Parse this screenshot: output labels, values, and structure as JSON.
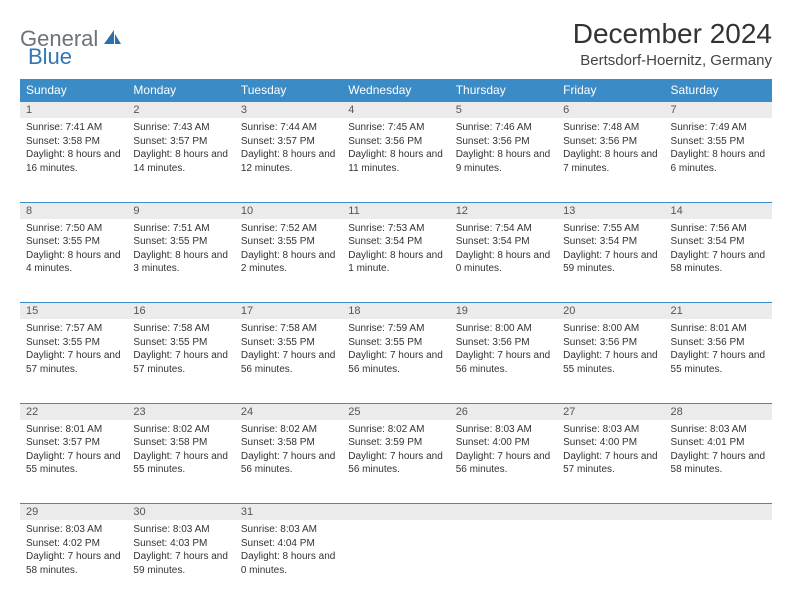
{
  "brand": {
    "part1": "General",
    "part2": "Blue",
    "color1": "#6b7278",
    "color2": "#3277b3"
  },
  "title": "December 2024",
  "location": "Bertsdorf-Hoernitz, Germany",
  "header_bg": "#3b8bc7",
  "daynum_bg": "#ebebeb",
  "border_color": "#3b8bc7",
  "weekdays": [
    "Sunday",
    "Monday",
    "Tuesday",
    "Wednesday",
    "Thursday",
    "Friday",
    "Saturday"
  ],
  "weeks": [
    [
      {
        "day": "1",
        "sunrise": "Sunrise: 7:41 AM",
        "sunset": "Sunset: 3:58 PM",
        "daylight": "Daylight: 8 hours and 16 minutes."
      },
      {
        "day": "2",
        "sunrise": "Sunrise: 7:43 AM",
        "sunset": "Sunset: 3:57 PM",
        "daylight": "Daylight: 8 hours and 14 minutes."
      },
      {
        "day": "3",
        "sunrise": "Sunrise: 7:44 AM",
        "sunset": "Sunset: 3:57 PM",
        "daylight": "Daylight: 8 hours and 12 minutes."
      },
      {
        "day": "4",
        "sunrise": "Sunrise: 7:45 AM",
        "sunset": "Sunset: 3:56 PM",
        "daylight": "Daylight: 8 hours and 11 minutes."
      },
      {
        "day": "5",
        "sunrise": "Sunrise: 7:46 AM",
        "sunset": "Sunset: 3:56 PM",
        "daylight": "Daylight: 8 hours and 9 minutes."
      },
      {
        "day": "6",
        "sunrise": "Sunrise: 7:48 AM",
        "sunset": "Sunset: 3:56 PM",
        "daylight": "Daylight: 8 hours and 7 minutes."
      },
      {
        "day": "7",
        "sunrise": "Sunrise: 7:49 AM",
        "sunset": "Sunset: 3:55 PM",
        "daylight": "Daylight: 8 hours and 6 minutes."
      }
    ],
    [
      {
        "day": "8",
        "sunrise": "Sunrise: 7:50 AM",
        "sunset": "Sunset: 3:55 PM",
        "daylight": "Daylight: 8 hours and 4 minutes."
      },
      {
        "day": "9",
        "sunrise": "Sunrise: 7:51 AM",
        "sunset": "Sunset: 3:55 PM",
        "daylight": "Daylight: 8 hours and 3 minutes."
      },
      {
        "day": "10",
        "sunrise": "Sunrise: 7:52 AM",
        "sunset": "Sunset: 3:55 PM",
        "daylight": "Daylight: 8 hours and 2 minutes."
      },
      {
        "day": "11",
        "sunrise": "Sunrise: 7:53 AM",
        "sunset": "Sunset: 3:54 PM",
        "daylight": "Daylight: 8 hours and 1 minute."
      },
      {
        "day": "12",
        "sunrise": "Sunrise: 7:54 AM",
        "sunset": "Sunset: 3:54 PM",
        "daylight": "Daylight: 8 hours and 0 minutes."
      },
      {
        "day": "13",
        "sunrise": "Sunrise: 7:55 AM",
        "sunset": "Sunset: 3:54 PM",
        "daylight": "Daylight: 7 hours and 59 minutes."
      },
      {
        "day": "14",
        "sunrise": "Sunrise: 7:56 AM",
        "sunset": "Sunset: 3:54 PM",
        "daylight": "Daylight: 7 hours and 58 minutes."
      }
    ],
    [
      {
        "day": "15",
        "sunrise": "Sunrise: 7:57 AM",
        "sunset": "Sunset: 3:55 PM",
        "daylight": "Daylight: 7 hours and 57 minutes."
      },
      {
        "day": "16",
        "sunrise": "Sunrise: 7:58 AM",
        "sunset": "Sunset: 3:55 PM",
        "daylight": "Daylight: 7 hours and 57 minutes."
      },
      {
        "day": "17",
        "sunrise": "Sunrise: 7:58 AM",
        "sunset": "Sunset: 3:55 PM",
        "daylight": "Daylight: 7 hours and 56 minutes."
      },
      {
        "day": "18",
        "sunrise": "Sunrise: 7:59 AM",
        "sunset": "Sunset: 3:55 PM",
        "daylight": "Daylight: 7 hours and 56 minutes."
      },
      {
        "day": "19",
        "sunrise": "Sunrise: 8:00 AM",
        "sunset": "Sunset: 3:56 PM",
        "daylight": "Daylight: 7 hours and 56 minutes."
      },
      {
        "day": "20",
        "sunrise": "Sunrise: 8:00 AM",
        "sunset": "Sunset: 3:56 PM",
        "daylight": "Daylight: 7 hours and 55 minutes."
      },
      {
        "day": "21",
        "sunrise": "Sunrise: 8:01 AM",
        "sunset": "Sunset: 3:56 PM",
        "daylight": "Daylight: 7 hours and 55 minutes."
      }
    ],
    [
      {
        "day": "22",
        "sunrise": "Sunrise: 8:01 AM",
        "sunset": "Sunset: 3:57 PM",
        "daylight": "Daylight: 7 hours and 55 minutes."
      },
      {
        "day": "23",
        "sunrise": "Sunrise: 8:02 AM",
        "sunset": "Sunset: 3:58 PM",
        "daylight": "Daylight: 7 hours and 55 minutes."
      },
      {
        "day": "24",
        "sunrise": "Sunrise: 8:02 AM",
        "sunset": "Sunset: 3:58 PM",
        "daylight": "Daylight: 7 hours and 56 minutes."
      },
      {
        "day": "25",
        "sunrise": "Sunrise: 8:02 AM",
        "sunset": "Sunset: 3:59 PM",
        "daylight": "Daylight: 7 hours and 56 minutes."
      },
      {
        "day": "26",
        "sunrise": "Sunrise: 8:03 AM",
        "sunset": "Sunset: 4:00 PM",
        "daylight": "Daylight: 7 hours and 56 minutes."
      },
      {
        "day": "27",
        "sunrise": "Sunrise: 8:03 AM",
        "sunset": "Sunset: 4:00 PM",
        "daylight": "Daylight: 7 hours and 57 minutes."
      },
      {
        "day": "28",
        "sunrise": "Sunrise: 8:03 AM",
        "sunset": "Sunset: 4:01 PM",
        "daylight": "Daylight: 7 hours and 58 minutes."
      }
    ],
    [
      {
        "day": "29",
        "sunrise": "Sunrise: 8:03 AM",
        "sunset": "Sunset: 4:02 PM",
        "daylight": "Daylight: 7 hours and 58 minutes."
      },
      {
        "day": "30",
        "sunrise": "Sunrise: 8:03 AM",
        "sunset": "Sunset: 4:03 PM",
        "daylight": "Daylight: 7 hours and 59 minutes."
      },
      {
        "day": "31",
        "sunrise": "Sunrise: 8:03 AM",
        "sunset": "Sunset: 4:04 PM",
        "daylight": "Daylight: 8 hours and 0 minutes."
      },
      null,
      null,
      null,
      null
    ]
  ]
}
